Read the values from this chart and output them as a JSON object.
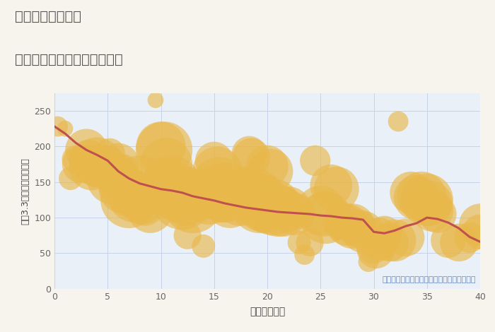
{
  "title_line1": "東京都西高島平駅",
  "title_line2": "築年数別中古マンション価格",
  "xlabel": "築年数（年）",
  "ylabel": "坪（3.3㎡）単価（万円）",
  "annotation": "円の大きさは、取引のあった物件面積を示す",
  "bg_color": "#f7f3ed",
  "plot_bg_color": "#eaf0f8",
  "grid_color": "#c5d3e8",
  "scatter_color": "#e8b84b",
  "scatter_alpha": 0.65,
  "line_color": "#c0504d",
  "line_width": 2.2,
  "xlim": [
    0,
    40
  ],
  "ylim": [
    0,
    275
  ],
  "yticks": [
    0,
    50,
    100,
    150,
    200,
    250
  ],
  "xticks": [
    0,
    5,
    10,
    15,
    20,
    25,
    30,
    35,
    40
  ],
  "scatter_points": [
    [
      0.3,
      228,
      28
    ],
    [
      1.0,
      225,
      22
    ],
    [
      1.5,
      155,
      32
    ],
    [
      2.0,
      182,
      38
    ],
    [
      2.5,
      175,
      52
    ],
    [
      2.8,
      180,
      42
    ],
    [
      3.0,
      195,
      58
    ],
    [
      3.2,
      185,
      48
    ],
    [
      3.5,
      170,
      62
    ],
    [
      3.8,
      162,
      38
    ],
    [
      4.0,
      178,
      68
    ],
    [
      4.2,
      168,
      42
    ],
    [
      4.5,
      180,
      32
    ],
    [
      4.8,
      160,
      28
    ],
    [
      5.0,
      175,
      52
    ],
    [
      5.2,
      190,
      42
    ],
    [
      5.5,
      155,
      72
    ],
    [
      5.8,
      145,
      48
    ],
    [
      6.0,
      175,
      58
    ],
    [
      6.2,
      158,
      62
    ],
    [
      6.5,
      140,
      68
    ],
    [
      6.8,
      135,
      52
    ],
    [
      7.0,
      125,
      78
    ],
    [
      7.2,
      132,
      62
    ],
    [
      7.5,
      130,
      72
    ],
    [
      8.0,
      145,
      82
    ],
    [
      8.2,
      120,
      58
    ],
    [
      8.5,
      115,
      52
    ],
    [
      9.0,
      110,
      62
    ],
    [
      9.5,
      265,
      22
    ],
    [
      10.0,
      200,
      68
    ],
    [
      10.3,
      195,
      78
    ],
    [
      10.5,
      175,
      72
    ],
    [
      10.8,
      150,
      62
    ],
    [
      11.0,
      145,
      82
    ],
    [
      11.2,
      138,
      68
    ],
    [
      11.5,
      135,
      78
    ],
    [
      11.8,
      130,
      72
    ],
    [
      12.0,
      128,
      88
    ],
    [
      12.3,
      125,
      72
    ],
    [
      12.5,
      75,
      38
    ],
    [
      13.0,
      120,
      82
    ],
    [
      13.2,
      135,
      62
    ],
    [
      13.5,
      130,
      68
    ],
    [
      14.0,
      60,
      32
    ],
    [
      14.5,
      130,
      78
    ],
    [
      15.0,
      180,
      52
    ],
    [
      15.3,
      165,
      68
    ],
    [
      15.5,
      145,
      78
    ],
    [
      15.8,
      130,
      72
    ],
    [
      16.0,
      135,
      82
    ],
    [
      16.5,
      120,
      68
    ],
    [
      17.0,
      130,
      58
    ],
    [
      17.5,
      125,
      72
    ],
    [
      17.8,
      140,
      62
    ],
    [
      18.0,
      135,
      68
    ],
    [
      18.3,
      190,
      48
    ],
    [
      18.5,
      185,
      52
    ],
    [
      18.8,
      130,
      78
    ],
    [
      19.0,
      125,
      72
    ],
    [
      19.3,
      120,
      82
    ],
    [
      19.5,
      115,
      68
    ],
    [
      19.8,
      110,
      62
    ],
    [
      20.0,
      172,
      58
    ],
    [
      20.3,
      165,
      62
    ],
    [
      20.5,
      115,
      78
    ],
    [
      21.0,
      110,
      72
    ],
    [
      21.5,
      108,
      68
    ],
    [
      22.0,
      112,
      62
    ],
    [
      22.5,
      105,
      58
    ],
    [
      23.0,
      65,
      32
    ],
    [
      23.5,
      48,
      28
    ],
    [
      24.0,
      65,
      38
    ],
    [
      24.5,
      180,
      42
    ],
    [
      25.0,
      110,
      68
    ],
    [
      25.3,
      105,
      62
    ],
    [
      25.5,
      100,
      72
    ],
    [
      26.0,
      145,
      58
    ],
    [
      26.5,
      140,
      62
    ],
    [
      27.0,
      95,
      52
    ],
    [
      27.5,
      90,
      58
    ],
    [
      28.0,
      88,
      62
    ],
    [
      28.5,
      85,
      52
    ],
    [
      29.0,
      80,
      58
    ],
    [
      29.5,
      38,
      28
    ],
    [
      30.0,
      60,
      48
    ],
    [
      30.2,
      55,
      52
    ],
    [
      30.5,
      70,
      58
    ],
    [
      31.0,
      78,
      48
    ],
    [
      31.5,
      65,
      52
    ],
    [
      32.0,
      68,
      58
    ],
    [
      32.3,
      235,
      28
    ],
    [
      33.0,
      72,
      52
    ],
    [
      33.5,
      135,
      58
    ],
    [
      34.0,
      128,
      62
    ],
    [
      34.5,
      130,
      68
    ],
    [
      35.0,
      125,
      72
    ],
    [
      35.3,
      120,
      62
    ],
    [
      35.5,
      110,
      58
    ],
    [
      36.0,
      105,
      52
    ],
    [
      37.0,
      68,
      48
    ],
    [
      38.0,
      65,
      52
    ],
    [
      39.0,
      72,
      42
    ],
    [
      40.0,
      90,
      58
    ],
    [
      40.0,
      80,
      48
    ]
  ],
  "trend_line": [
    [
      0,
      228
    ],
    [
      1,
      218
    ],
    [
      2,
      205
    ],
    [
      3,
      195
    ],
    [
      4,
      188
    ],
    [
      5,
      180
    ],
    [
      6,
      165
    ],
    [
      7,
      155
    ],
    [
      8,
      148
    ],
    [
      9,
      144
    ],
    [
      10,
      140
    ],
    [
      11,
      138
    ],
    [
      12,
      135
    ],
    [
      13,
      130
    ],
    [
      14,
      127
    ],
    [
      15,
      124
    ],
    [
      16,
      120
    ],
    [
      17,
      117
    ],
    [
      18,
      114
    ],
    [
      19,
      112
    ],
    [
      20,
      110
    ],
    [
      21,
      108
    ],
    [
      22,
      107
    ],
    [
      23,
      106
    ],
    [
      24,
      105
    ],
    [
      25,
      103
    ],
    [
      26,
      102
    ],
    [
      27,
      100
    ],
    [
      28,
      99
    ],
    [
      29,
      97
    ],
    [
      30,
      80
    ],
    [
      31,
      78
    ],
    [
      32,
      82
    ],
    [
      33,
      88
    ],
    [
      34,
      92
    ],
    [
      35,
      100
    ],
    [
      36,
      98
    ],
    [
      37,
      93
    ],
    [
      38,
      85
    ],
    [
      39,
      73
    ],
    [
      40,
      66
    ]
  ]
}
